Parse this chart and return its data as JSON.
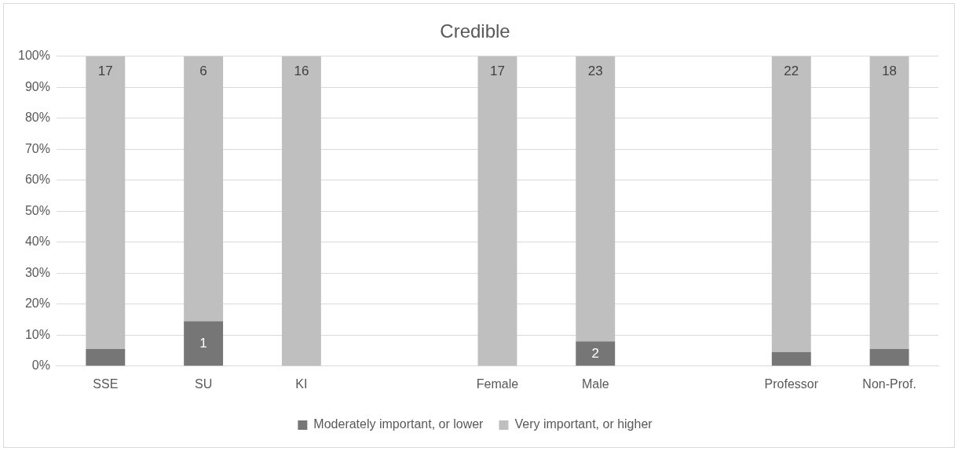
{
  "chart_data": {
    "type": "bar",
    "title": "Credible",
    "stacked": true,
    "categories": [
      "SSE",
      "SU",
      "KI",
      null,
      "Female",
      "Male",
      null,
      "Professor",
      "Non-Prof."
    ],
    "series": [
      {
        "name": "Moderately important, or lower",
        "color": "#767676",
        "values": [
          5.5,
          14.5,
          0,
          null,
          0,
          8,
          null,
          4.5,
          5.5
        ]
      },
      {
        "name": "Very important, or higher",
        "color": "#bfbfbf",
        "values": [
          94.5,
          85.5,
          100,
          null,
          100,
          92,
          null,
          95.5,
          94.5
        ]
      }
    ],
    "annotations": [
      {
        "text": "1",
        "x": "SU",
        "y": 14.5
      },
      {
        "text": "2",
        "x": "Male",
        "y": 8
      },
      {
        "text": "17",
        "x": "SSE",
        "y": 100
      },
      {
        "text": "6",
        "x": "SU",
        "y": 100
      },
      {
        "text": "16",
        "x": "KI",
        "y": 100
      },
      {
        "text": "17",
        "x": "Female",
        "y": 100
      },
      {
        "text": "23",
        "x": "Male",
        "y": 100
      },
      {
        "text": "22",
        "x": "Professor",
        "y": 100
      },
      {
        "text": "18",
        "x": "Non-Prof.",
        "y": 100
      }
    ],
    "ylim": [
      0,
      100
    ],
    "yticks": [
      {
        "value": 0,
        "label": "0%"
      },
      {
        "value": 10,
        "label": "10%"
      },
      {
        "value": 20,
        "label": "20%"
      },
      {
        "value": 30,
        "label": "30%"
      },
      {
        "value": 40,
        "label": "40%"
      },
      {
        "value": 50,
        "label": "50%"
      },
      {
        "value": 60,
        "label": "60%"
      },
      {
        "value": 70,
        "label": "70%"
      },
      {
        "value": 80,
        "label": "80%"
      },
      {
        "value": 90,
        "label": "90%"
      },
      {
        "value": 100,
        "label": "100%"
      }
    ],
    "grid": "y",
    "legend": "bottom"
  }
}
